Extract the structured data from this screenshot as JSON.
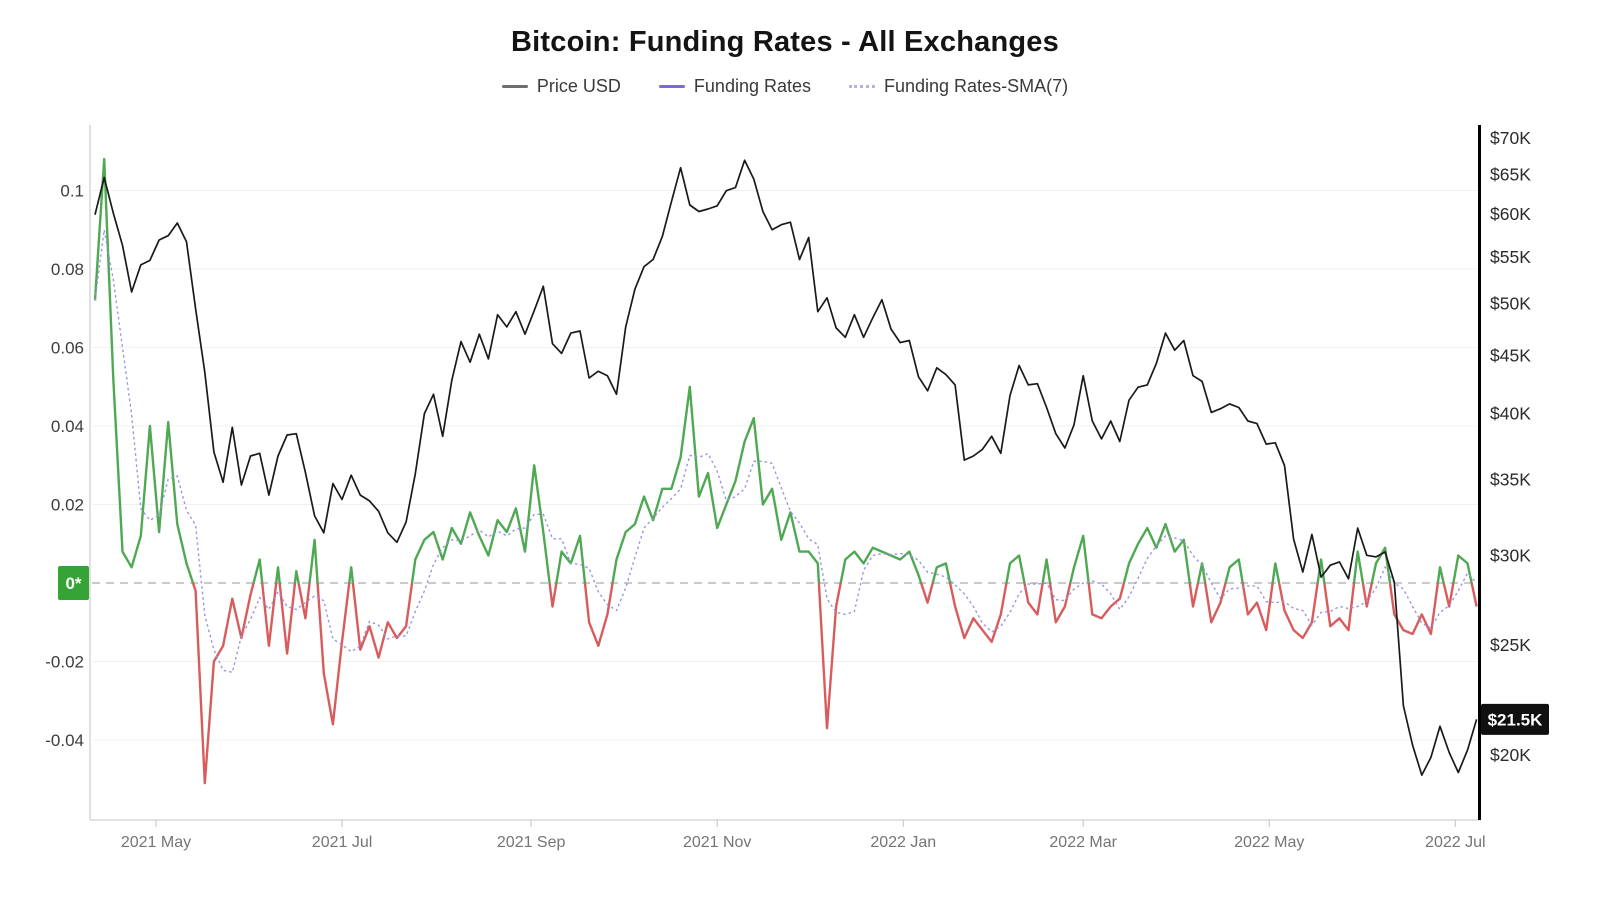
{
  "header": {
    "title": "Bitcoin: Funding Rates - All Exchanges",
    "legend": [
      {
        "label": "Price USD",
        "color": "#6e6e6e"
      },
      {
        "label": "Funding Rates",
        "color": "#7a6bd0"
      },
      {
        "label": "Funding Rates-SMA(7)",
        "color": "#b7b1ea"
      }
    ]
  },
  "chart_data": {
    "type": "line",
    "title": "Bitcoin: Funding Rates - All Exchanges",
    "start_date": "2021-04-11",
    "step_days": 3,
    "grid": "horizontal-only",
    "colors": {
      "price": "#1a1a1a",
      "funding_positive": "#4fa852",
      "funding_negative": "#d95c5c",
      "sma": "#9b93e3",
      "grid": "#f0f0f0",
      "zero_line": "#b8b8b8",
      "axis": "#d8d8d8",
      "right_axis": "#000000",
      "tick_text": "#3d3d3d",
      "right_tick_text": "#2b2b2b",
      "x_text": "#757575"
    },
    "x_axis": {
      "ticks": [
        {
          "label": "2021 May",
          "day": 20
        },
        {
          "label": "2021 Jul",
          "day": 81
        },
        {
          "label": "2021 Sep",
          "day": 143
        },
        {
          "label": "2021 Nov",
          "day": 204
        },
        {
          "label": "2022 Jan",
          "day": 265
        },
        {
          "label": "2022 Mar",
          "day": 324
        },
        {
          "label": "2022 May",
          "day": 385
        },
        {
          "label": "2022 Jul",
          "day": 446
        }
      ]
    },
    "left_axis": {
      "title": "Funding Rates",
      "range": [
        -0.062,
        0.118
      ],
      "ticks": [
        {
          "label": "0.1",
          "value": 0.1
        },
        {
          "label": "0.08",
          "value": 0.08
        },
        {
          "label": "0.06",
          "value": 0.06
        },
        {
          "label": "0.04",
          "value": 0.04
        },
        {
          "label": "0.02",
          "value": 0.02
        },
        {
          "label": "-0.02",
          "value": -0.02
        },
        {
          "label": "-0.04",
          "value": -0.04
        }
      ],
      "zero_badge": {
        "label": "0*",
        "bg": "#36a336",
        "text_color": "#ffffff"
      }
    },
    "right_axis": {
      "title": "Price USD",
      "scale": "log",
      "ticks": [
        {
          "label": "$70K",
          "value": 70
        },
        {
          "label": "$65K",
          "value": 65
        },
        {
          "label": "$60K",
          "value": 60
        },
        {
          "label": "$55K",
          "value": 55
        },
        {
          "label": "$50K",
          "value": 50
        },
        {
          "label": "$45K",
          "value": 45
        },
        {
          "label": "$40K",
          "value": 40
        },
        {
          "label": "$35K",
          "value": 35
        },
        {
          "label": "$30K",
          "value": 30
        },
        {
          "label": "$25K",
          "value": 25
        },
        {
          "label": "$20K",
          "value": 20
        }
      ],
      "current_price_badge": {
        "label": "$21.5K",
        "value": 21.5,
        "bg": "#101010",
        "text_color": "#ffffff"
      }
    },
    "zero_line": {
      "value": 0,
      "style": "dashed"
    },
    "series": [
      {
        "name": "Price USD",
        "axis": "right",
        "unit": "USD thousands",
        "values": [
          59.9,
          64.6,
          60.1,
          56.3,
          51.2,
          54.1,
          54.6,
          56.9,
          57.4,
          58.9,
          56.7,
          49.5,
          43.5,
          37.0,
          34.8,
          38.9,
          34.6,
          36.7,
          36.9,
          33.9,
          36.7,
          38.3,
          38.4,
          35.5,
          32.5,
          31.4,
          34.7,
          33.6,
          35.3,
          33.9,
          33.5,
          32.8,
          31.4,
          30.8,
          32.1,
          35.4,
          40.0,
          41.6,
          38.2,
          42.8,
          46.3,
          44.4,
          47.0,
          44.7,
          48.9,
          47.7,
          49.2,
          47.0,
          49.3,
          51.8,
          46.1,
          45.2,
          47.1,
          47.3,
          43.0,
          43.6,
          43.2,
          41.6,
          47.7,
          51.5,
          53.9,
          54.7,
          57.3,
          61.5,
          65.9,
          61.1,
          60.3,
          60.6,
          61.0,
          62.9,
          63.3,
          66.9,
          64.4,
          60.3,
          58.1,
          58.7,
          59.0,
          54.7,
          57.2,
          49.2,
          50.6,
          47.6,
          46.7,
          48.9,
          46.7,
          48.6,
          50.4,
          47.5,
          46.2,
          46.4,
          43.1,
          41.9,
          43.9,
          43.3,
          42.4,
          36.4,
          36.7,
          37.2,
          38.2,
          36.9,
          41.5,
          44.1,
          42.4,
          42.5,
          40.5,
          38.4,
          37.3,
          39.1,
          43.2,
          39.4,
          38.0,
          39.4,
          37.8,
          41.1,
          42.2,
          42.4,
          44.3,
          47.1,
          45.5,
          46.4,
          43.2,
          42.7,
          40.1,
          40.4,
          40.8,
          40.5,
          39.4,
          39.2,
          37.6,
          37.7,
          36.0,
          31.0,
          29.0,
          31.3,
          28.7,
          29.4,
          29.6,
          28.6,
          31.7,
          30.0,
          29.9,
          30.2,
          28.4,
          22.1,
          20.4,
          19.2,
          19.9,
          21.2,
          20.1,
          19.3,
          20.2,
          21.5
        ]
      },
      {
        "name": "Funding Rates",
        "axis": "left",
        "values": [
          0.072,
          0.108,
          0.052,
          0.008,
          0.004,
          0.012,
          0.04,
          0.013,
          0.041,
          0.015,
          0.005,
          -0.002,
          -0.051,
          -0.02,
          -0.016,
          -0.004,
          -0.014,
          -0.003,
          0.006,
          -0.016,
          0.004,
          -0.018,
          0.003,
          -0.009,
          0.011,
          -0.023,
          -0.036,
          -0.015,
          0.004,
          -0.017,
          -0.011,
          -0.019,
          -0.01,
          -0.014,
          -0.011,
          0.006,
          0.011,
          0.013,
          0.006,
          0.014,
          0.01,
          0.018,
          0.012,
          0.007,
          0.016,
          0.013,
          0.019,
          0.008,
          0.03,
          0.013,
          -0.006,
          0.008,
          0.005,
          0.012,
          -0.01,
          -0.016,
          -0.008,
          0.006,
          0.013,
          0.015,
          0.022,
          0.016,
          0.024,
          0.024,
          0.032,
          0.05,
          0.022,
          0.028,
          0.014,
          0.02,
          0.026,
          0.036,
          0.042,
          0.02,
          0.024,
          0.011,
          0.018,
          0.008,
          0.008,
          0.005,
          -0.037,
          -0.006,
          0.006,
          0.008,
          0.005,
          0.009,
          0.008,
          0.007,
          0.006,
          0.008,
          0.002,
          -0.005,
          0.004,
          0.005,
          -0.006,
          -0.014,
          -0.009,
          -0.012,
          -0.015,
          -0.008,
          0.005,
          0.007,
          -0.005,
          -0.008,
          0.006,
          -0.01,
          -0.006,
          0.004,
          0.012,
          -0.008,
          -0.009,
          -0.006,
          -0.004,
          0.005,
          0.01,
          0.014,
          0.009,
          0.015,
          0.008,
          0.011,
          -0.006,
          0.005,
          -0.01,
          -0.005,
          0.004,
          0.006,
          -0.008,
          -0.005,
          -0.012,
          0.005,
          -0.007,
          -0.012,
          -0.014,
          -0.01,
          0.006,
          -0.011,
          -0.009,
          -0.012,
          0.008,
          -0.006,
          0.005,
          0.009,
          -0.008,
          -0.012,
          -0.013,
          -0.008,
          -0.013,
          0.004,
          -0.006,
          0.007,
          0.005,
          -0.006
        ]
      },
      {
        "name": "Funding Rates-SMA(7)",
        "axis": "left",
        "derived": "sma_of_funding_rates",
        "window_days": 7
      }
    ]
  }
}
